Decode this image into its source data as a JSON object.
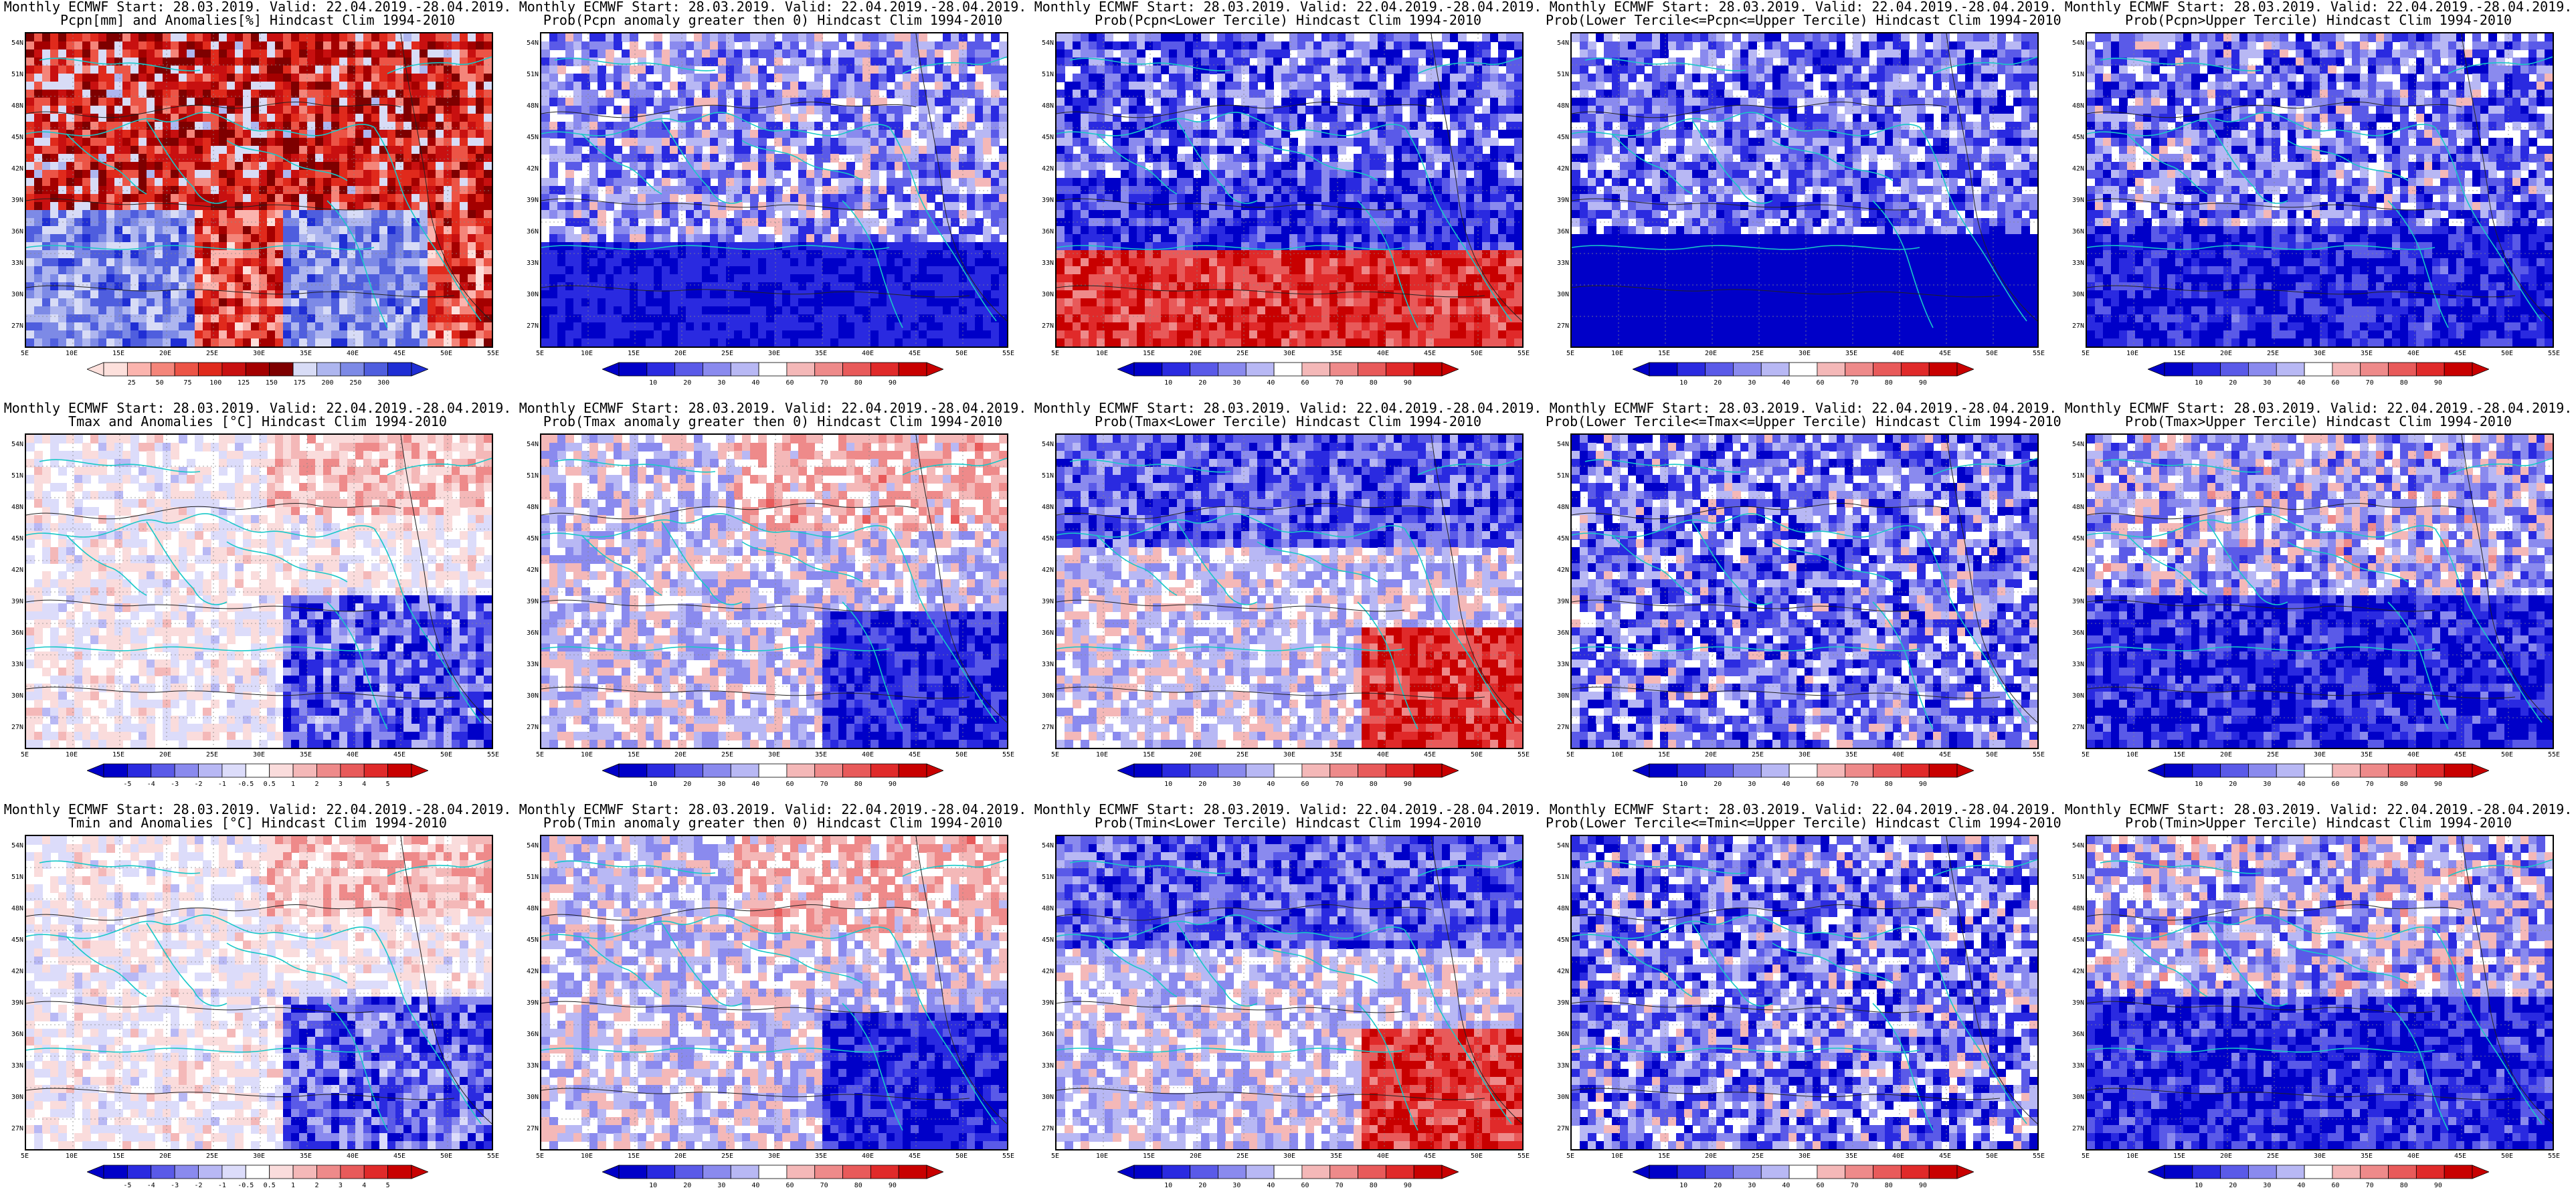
{
  "xlabels": [
    "5E",
    "10E",
    "15E",
    "20E",
    "25E",
    "30E",
    "35E",
    "40E",
    "45E",
    "50E",
    "55E"
  ],
  "ylabels": [
    "54N",
    "51N",
    "48N",
    "45N",
    "42N",
    "39N",
    "36N",
    "33N",
    "30N",
    "27N"
  ],
  "panels": [
    {
      "t1": "Monthly ECMWF Start: 28.03.2019. Valid: 22.04.2019.-28.04.2019.",
      "t2": "Pcpn[mm] and Anomalies[%] Hindcast Clim 1994-2010",
      "cbar": "pcpn",
      "ticks": [
        "25",
        "50",
        "75",
        "100",
        "125",
        "150",
        "175",
        "200",
        "250",
        "300"
      ],
      "pattern": "pcpn-anom"
    },
    {
      "t1": "Monthly ECMWF Start: 28.03.2019. Valid: 22.04.2019.-28.04.2019.",
      "t2": "Prob(Pcpn anomaly greater then 0) Hindcast Clim 1994-2010",
      "cbar": "prob",
      "ticks": [
        "10",
        "20",
        "30",
        "40",
        "60",
        "70",
        "80",
        "90"
      ],
      "pattern": "pcpn-prob"
    },
    {
      "t1": "Monthly ECMWF Start: 28.03.2019. Valid: 22.04.2019.-28.04.2019.",
      "t2": "Prob(Pcpn<Lower Tercile) Hindcast Clim 1994-2010",
      "cbar": "prob",
      "ticks": [
        "10",
        "20",
        "30",
        "40",
        "60",
        "70",
        "80",
        "90"
      ],
      "pattern": "pcpn-lower"
    },
    {
      "t1": "Monthly ECMWF Start: 28.03.2019. Valid: 22.04.2019.-28.04.2019.",
      "t2": "Prob(Lower Tercile<=Pcpn<=Upper Tercile) Hindcast Clim 1994-2010",
      "cbar": "prob",
      "ticks": [
        "10",
        "20",
        "30",
        "40",
        "60",
        "70",
        "80",
        "90"
      ],
      "pattern": "pcpn-mid"
    },
    {
      "t1": "Monthly ECMWF Start: 28.03.2019. Valid: 22.04.2019.-28.04.2019.",
      "t2": "Prob(Pcpn>Upper Tercile) Hindcast Clim 1994-2010",
      "cbar": "prob",
      "ticks": [
        "10",
        "20",
        "30",
        "40",
        "60",
        "70",
        "80",
        "90"
      ],
      "pattern": "pcpn-upper"
    },
    {
      "t1": "Monthly ECMWF Start: 28.03.2019. Valid: 22.04.2019.-28.04.2019.",
      "t2": "Tmax and Anomalies [°C] Hindcast Clim 1994-2010",
      "cbar": "anom",
      "ticks": [
        "-5",
        "-4",
        "-3",
        "-2",
        "-1",
        "-0.5",
        "0.5",
        "1",
        "2",
        "3",
        "4",
        "5"
      ],
      "pattern": "t-anom"
    },
    {
      "t1": "Monthly ECMWF Start: 28.03.2019. Valid: 22.04.2019.-28.04.2019.",
      "t2": "Prob(Tmax anomaly greater then 0) Hindcast Clim 1994-2010",
      "cbar": "prob",
      "ticks": [
        "10",
        "20",
        "30",
        "40",
        "60",
        "70",
        "80",
        "90"
      ],
      "pattern": "t-prob"
    },
    {
      "t1": "Monthly ECMWF Start: 28.03.2019. Valid: 22.04.2019.-28.04.2019.",
      "t2": "Prob(Tmax<Lower Tercile) Hindcast Clim 1994-2010",
      "cbar": "prob",
      "ticks": [
        "10",
        "20",
        "30",
        "40",
        "60",
        "70",
        "80",
        "90"
      ],
      "pattern": "t-lower"
    },
    {
      "t1": "Monthly ECMWF Start: 28.03.2019. Valid: 22.04.2019.-28.04.2019.",
      "t2": "Prob(Lower Tercile<=Tmax<=Upper Tercile) Hindcast Clim 1994-2010",
      "cbar": "prob",
      "ticks": [
        "10",
        "20",
        "30",
        "40",
        "60",
        "70",
        "80",
        "90"
      ],
      "pattern": "t-mid"
    },
    {
      "t1": "Monthly ECMWF Start: 28.03.2019. Valid: 22.04.2019.-28.04.2019.",
      "t2": "Prob(Tmax>Upper Tercile) Hindcast Clim 1994-2010",
      "cbar": "prob",
      "ticks": [
        "10",
        "20",
        "30",
        "40",
        "60",
        "70",
        "80",
        "90"
      ],
      "pattern": "t-upper"
    },
    {
      "t1": "Monthly ECMWF Start: 28.03.2019. Valid: 22.04.2019.-28.04.2019.",
      "t2": "Tmin and Anomalies [°C] Hindcast Clim 1994-2010",
      "cbar": "anom",
      "ticks": [
        "-5",
        "-4",
        "-3",
        "-2",
        "-1",
        "-0.5",
        "0.5",
        "1",
        "2",
        "3",
        "4",
        "5"
      ],
      "pattern": "t-anom"
    },
    {
      "t1": "Monthly ECMWF Start: 28.03.2019. Valid: 22.04.2019.-28.04.2019.",
      "t2": "Prob(Tmin anomaly greater then 0) Hindcast Clim 1994-2010",
      "cbar": "prob",
      "ticks": [
        "10",
        "20",
        "30",
        "40",
        "60",
        "70",
        "80",
        "90"
      ],
      "pattern": "t-prob"
    },
    {
      "t1": "Monthly ECMWF Start: 28.03.2019. Valid: 22.04.2019.-28.04.2019.",
      "t2": "Prob(Tmin<Lower Tercile) Hindcast Clim 1994-2010",
      "cbar": "prob",
      "ticks": [
        "10",
        "20",
        "30",
        "40",
        "60",
        "70",
        "80",
        "90"
      ],
      "pattern": "t-lower"
    },
    {
      "t1": "Monthly ECMWF Start: 28.03.2019. Valid: 22.04.2019.-28.04.2019.",
      "t2": "Prob(Lower Tercile<=Tmin<=Upper Tercile) Hindcast Clim 1994-2010",
      "cbar": "prob",
      "ticks": [
        "10",
        "20",
        "30",
        "40",
        "60",
        "70",
        "80",
        "90"
      ],
      "pattern": "t-mid"
    },
    {
      "t1": "Monthly ECMWF Start: 28.03.2019. Valid: 22.04.2019.-28.04.2019.",
      "t2": "Prob(Tmin>Upper Tercile) Hindcast Clim 1994-2010",
      "cbar": "prob",
      "ticks": [
        "10",
        "20",
        "30",
        "40",
        "60",
        "70",
        "80",
        "90"
      ],
      "pattern": "t-upper"
    }
  ],
  "colors": {
    "pcpn": [
      "#fde0dc",
      "#fbb4ae",
      "#f4857a",
      "#ec5446",
      "#e02a1c",
      "#c81010",
      "#a40000",
      "#7e0000",
      "#d8dcf6",
      "#aeb6ef",
      "#7d8ae6",
      "#4f5ede",
      "#1f2ed4"
    ],
    "prob": [
      "#0000c8",
      "#2a2ae0",
      "#5a5ae8",
      "#8a8aee",
      "#b8b8f4",
      "#ffffff",
      "#f4b8b8",
      "#ee8a8a",
      "#e85a5a",
      "#e02a2a",
      "#c80000"
    ],
    "anom": [
      "#0000c8",
      "#2a2ae0",
      "#5a5ae8",
      "#8a8aee",
      "#b8b8f4",
      "#dcdcfa",
      "#ffffff",
      "#fadcdc",
      "#f4b8b8",
      "#ee8a8a",
      "#e85a5a",
      "#e02a2a",
      "#c80000"
    ]
  }
}
